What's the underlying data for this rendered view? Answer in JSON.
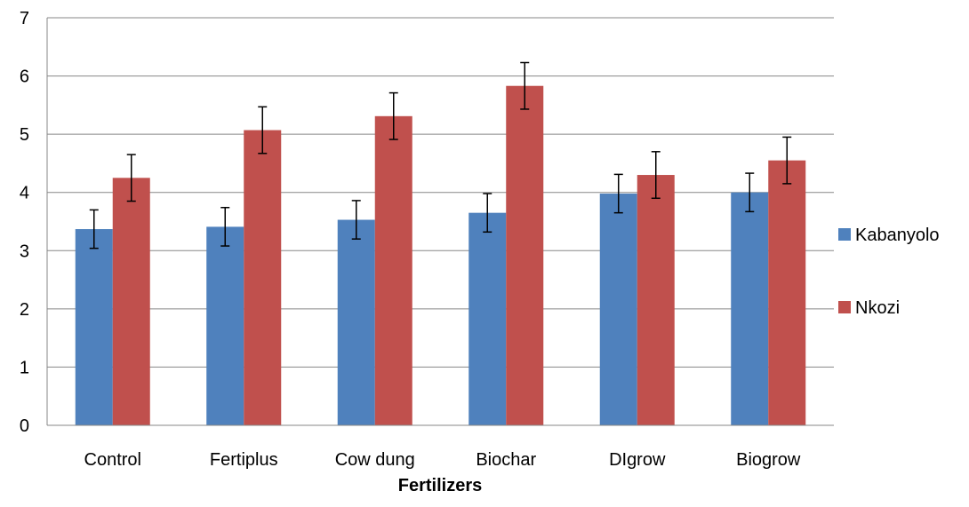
{
  "chart_data": {
    "type": "bar",
    "title": "",
    "xlabel": "Fertilizers",
    "ylabel": "",
    "categories": [
      "Control",
      "Fertiplus",
      "Cow dung",
      "Biochar",
      "DIgrow",
      "Biogrow"
    ],
    "series": [
      {
        "name": "Kabanyolo",
        "color": "#4F81BD",
        "values": [
          3.37,
          3.41,
          3.53,
          3.65,
          3.98,
          4.0
        ],
        "errors": [
          0.33,
          0.33,
          0.33,
          0.33,
          0.33,
          0.33
        ]
      },
      {
        "name": "Nkozi",
        "color": "#C0504D",
        "values": [
          4.25,
          5.07,
          5.31,
          5.83,
          4.3,
          4.55
        ],
        "errors": [
          0.4,
          0.4,
          0.4,
          0.4,
          0.4,
          0.4
        ]
      }
    ],
    "ylim": [
      0,
      7
    ],
    "yticks": [
      "0",
      "1",
      "2",
      "3",
      "4",
      "5",
      "6",
      "7"
    ],
    "grid": true,
    "legend_position": "right"
  }
}
